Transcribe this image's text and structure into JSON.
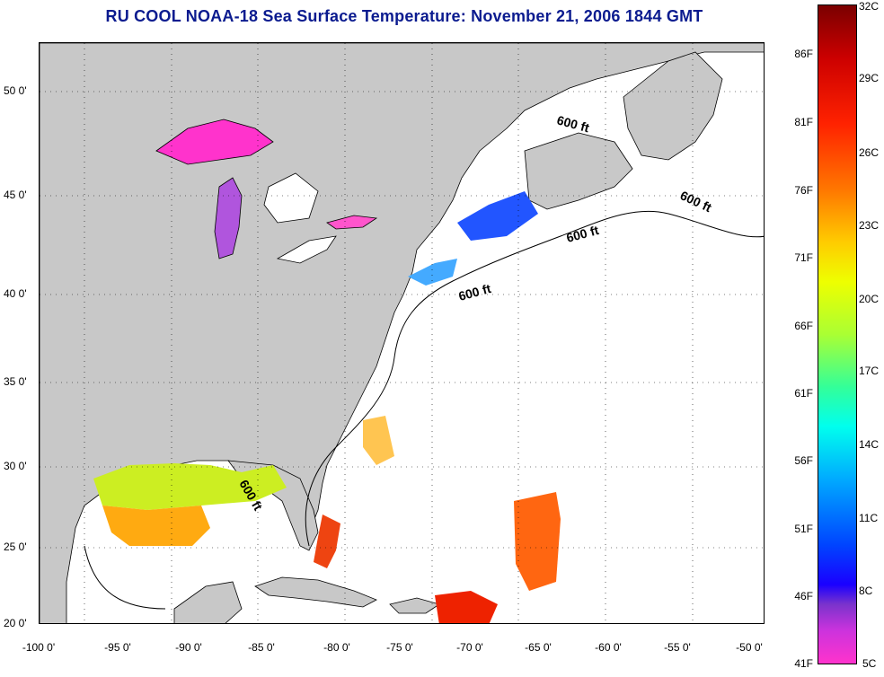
{
  "title": "RU COOL  NOAA-18  Sea Surface Temperature:  November 21, 2006 1844 GMT",
  "map": {
    "lat_labels": [
      "50 0'",
      "45 0'",
      "40 0'",
      "35 0'",
      "30 0'",
      "25 0'",
      "20 0'"
    ],
    "lon_labels": [
      "-100 0'",
      "-95 0'",
      "-90 0'",
      "-85 0'",
      "-80 0'",
      "-75 0'",
      "-70 0'",
      "-65 0'",
      "-60 0'",
      "-55 0'",
      "-50 0'"
    ],
    "contour_labels": [
      "600 ft",
      "600 ft",
      "600 ft",
      "600 ft",
      "600 ft"
    ],
    "colors": {
      "land": "#c8c8c8",
      "coast": "#000000",
      "grid": "#000000"
    }
  },
  "colorbar": {
    "fahrenheit": [
      "86F",
      "81F",
      "76F",
      "71F",
      "66F",
      "61F",
      "56F",
      "51F",
      "46F",
      "41F"
    ],
    "celsius": [
      "32C",
      "29C",
      "26C",
      "23C",
      "20C",
      "17C",
      "14C",
      "11C",
      "8C",
      "5C"
    ]
  }
}
